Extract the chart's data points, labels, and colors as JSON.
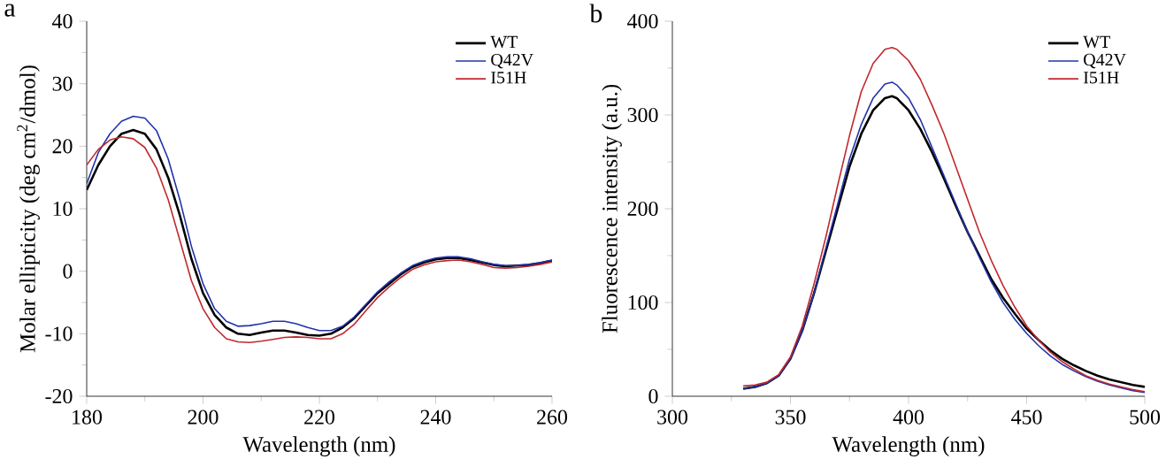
{
  "chart_data": [
    {
      "type": "line",
      "title": "a",
      "xlabel": "Wavelength (nm)",
      "ylabel": "Molar ellipticity (deg cm$^{2}$/dmol)",
      "xlim": [
        180,
        260
      ],
      "ylim": [
        -20,
        40
      ],
      "xticks": [
        180,
        200,
        220,
        240,
        260
      ],
      "yticks": [
        -20,
        -10,
        0,
        10,
        20,
        30,
        40
      ],
      "legend": "top right",
      "grid": false,
      "marker": "none",
      "line_style": "solid",
      "x": [
        180,
        182,
        184,
        186,
        188,
        190,
        192,
        194,
        196,
        198,
        200,
        202,
        204,
        206,
        208,
        210,
        212,
        214,
        216,
        218,
        220,
        222,
        224,
        226,
        228,
        230,
        232,
        234,
        236,
        238,
        240,
        242,
        244,
        246,
        248,
        250,
        252,
        254,
        256,
        258,
        260
      ],
      "series": [
        {
          "name": "WT",
          "color": "#000000",
          "values": [
            13,
            17,
            20,
            22,
            22.6,
            22,
            19.5,
            15,
            9,
            2,
            -3.5,
            -7,
            -9,
            -10,
            -10.2,
            -9.8,
            -9.5,
            -9.5,
            -9.8,
            -10.2,
            -10.3,
            -10,
            -9,
            -7.5,
            -5.5,
            -3.5,
            -2,
            -0.5,
            0.7,
            1.4,
            1.9,
            2.1,
            2.1,
            1.8,
            1.4,
            1,
            0.8,
            0.9,
            1,
            1.3,
            1.7
          ]
        },
        {
          "name": "Q42V",
          "color": "#2233aa",
          "values": [
            14,
            19,
            22,
            24,
            24.8,
            24.5,
            22.5,
            18,
            11.5,
            4,
            -2,
            -6,
            -8,
            -8.8,
            -8.7,
            -8.4,
            -8,
            -8,
            -8.4,
            -9,
            -9.5,
            -9.5,
            -8.8,
            -7.3,
            -5.3,
            -3.3,
            -1.7,
            -0.3,
            0.9,
            1.6,
            2.1,
            2.3,
            2.3,
            2,
            1.5,
            1.1,
            0.9,
            0.9,
            1.1,
            1.4,
            1.8
          ]
        },
        {
          "name": "I51H",
          "color": "#c0282d",
          "values": [
            17,
            19.5,
            21,
            21.5,
            21.2,
            19.8,
            16.5,
            11.5,
            5,
            -1.5,
            -6,
            -9,
            -10.8,
            -11.3,
            -11.4,
            -11.2,
            -10.9,
            -10.6,
            -10.5,
            -10.6,
            -10.8,
            -10.8,
            -10,
            -8.5,
            -6.3,
            -4.2,
            -2.5,
            -1,
            0.3,
            1,
            1.5,
            1.7,
            1.8,
            1.5,
            1.1,
            0.6,
            0.5,
            0.6,
            0.8,
            1.1,
            1.5
          ]
        }
      ]
    },
    {
      "type": "line",
      "title": "b",
      "xlabel": "Wavelength (nm)",
      "ylabel": "Fluorescence intensity (a.u.)",
      "xlim": [
        300,
        500
      ],
      "ylim": [
        0,
        400
      ],
      "xticks": [
        300,
        350,
        400,
        450,
        500
      ],
      "yticks": [
        0,
        100,
        200,
        300,
        400
      ],
      "legend": "top right",
      "grid": false,
      "marker": "none",
      "line_style": "solid",
      "x": [
        330,
        335,
        340,
        345,
        350,
        355,
        360,
        365,
        370,
        375,
        380,
        385,
        390,
        393,
        395,
        400,
        405,
        410,
        415,
        420,
        425,
        430,
        435,
        440,
        445,
        450,
        455,
        460,
        465,
        470,
        475,
        480,
        485,
        490,
        495,
        500
      ],
      "series": [
        {
          "name": "WT",
          "color": "#000000",
          "values": [
            8,
            10,
            14,
            22,
            40,
            70,
            110,
            155,
            200,
            245,
            280,
            305,
            318,
            320,
            318,
            305,
            285,
            260,
            232,
            203,
            175,
            150,
            125,
            105,
            88,
            72,
            60,
            49,
            40,
            33,
            27,
            22,
            18,
            15,
            12,
            10
          ]
        },
        {
          "name": "Q42V",
          "color": "#2233aa",
          "values": [
            8,
            10,
            14,
            22,
            40,
            70,
            110,
            158,
            205,
            253,
            290,
            318,
            333,
            335,
            332,
            318,
            295,
            265,
            235,
            205,
            175,
            148,
            122,
            100,
            82,
            67,
            54,
            43,
            34,
            27,
            21,
            16,
            12,
            9,
            6,
            4
          ]
        },
        {
          "name": "I51H",
          "color": "#c0282d",
          "values": [
            11,
            12,
            15,
            23,
            42,
            75,
            120,
            170,
            225,
            278,
            325,
            355,
            370,
            372,
            370,
            358,
            338,
            310,
            280,
            245,
            210,
            175,
            145,
            118,
            95,
            75,
            60,
            47,
            37,
            29,
            22,
            17,
            13,
            10,
            7,
            5
          ]
        }
      ]
    }
  ]
}
